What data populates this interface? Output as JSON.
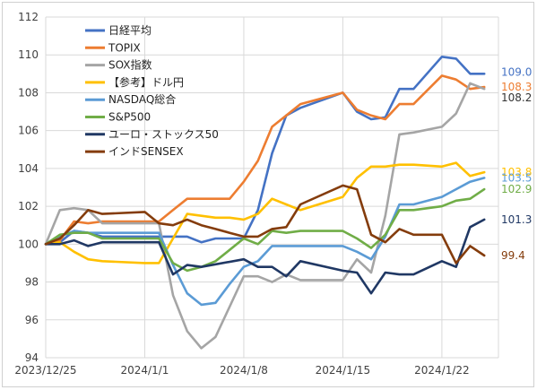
{
  "chart_data": {
    "type": "line",
    "title": "",
    "xlabel": "",
    "ylabel": "",
    "ylim": [
      94,
      112
    ],
    "yticks": [
      94,
      96,
      98,
      100,
      102,
      104,
      106,
      108,
      110,
      112
    ],
    "ytick_labels": [
      "94",
      "96",
      "98",
      "100",
      "102",
      "104",
      "106",
      "108",
      "110",
      "112"
    ],
    "xlim": [
      "2023-12-25",
      "2024-01-26"
    ],
    "xticks": [
      "2023-12-25",
      "2024-01-01",
      "2024-01-08",
      "2024-01-15",
      "2024-01-22"
    ],
    "xtick_labels": [
      "2023/12/25",
      "2024/1/1",
      "2024/1/8",
      "2024/1/15",
      "2024/1/22"
    ],
    "grid": true,
    "legend_position": "top-left",
    "series": [
      {
        "name": "日経平均",
        "color": "#4472c4",
        "end_label": "109.0",
        "points": [
          [
            "2023-12-25",
            100.0
          ],
          [
            "2023-12-26",
            100.1
          ],
          [
            "2023-12-27",
            100.7
          ],
          [
            "2023-12-28",
            100.6
          ],
          [
            "2023-12-29",
            100.4
          ],
          [
            "2024-01-01",
            100.4
          ],
          [
            "2024-01-02",
            100.4
          ],
          [
            "2024-01-03",
            100.4
          ],
          [
            "2024-01-04",
            100.4
          ],
          [
            "2024-01-05",
            100.1
          ],
          [
            "2024-01-06",
            100.3
          ],
          [
            "2024-01-07",
            100.3
          ],
          [
            "2024-01-08",
            100.3
          ],
          [
            "2024-01-09",
            101.8
          ],
          [
            "2024-01-10",
            104.8
          ],
          [
            "2024-01-11",
            106.8
          ],
          [
            "2024-01-12",
            107.2
          ],
          [
            "2024-01-15",
            108.0
          ],
          [
            "2024-01-16",
            107.0
          ],
          [
            "2024-01-17",
            106.6
          ],
          [
            "2024-01-18",
            106.7
          ],
          [
            "2024-01-19",
            108.2
          ],
          [
            "2024-01-20",
            108.2
          ],
          [
            "2024-01-22",
            109.9
          ],
          [
            "2024-01-23",
            109.8
          ],
          [
            "2024-01-24",
            109.0
          ],
          [
            "2024-01-25",
            109.0
          ]
        ]
      },
      {
        "name": "TOPIX",
        "color": "#ed7d31",
        "end_label": "108.3",
        "points": [
          [
            "2023-12-25",
            100.0
          ],
          [
            "2023-12-26",
            100.2
          ],
          [
            "2023-12-27",
            101.2
          ],
          [
            "2023-12-28",
            101.1
          ],
          [
            "2023-12-29",
            101.2
          ],
          [
            "2024-01-01",
            101.2
          ],
          [
            "2024-01-02",
            101.2
          ],
          [
            "2024-01-03",
            101.8
          ],
          [
            "2024-01-04",
            102.4
          ],
          [
            "2024-01-05",
            102.4
          ],
          [
            "2024-01-06",
            102.4
          ],
          [
            "2024-01-07",
            102.4
          ],
          [
            "2024-01-08",
            103.3
          ],
          [
            "2024-01-09",
            104.4
          ],
          [
            "2024-01-10",
            106.2
          ],
          [
            "2024-01-11",
            106.8
          ],
          [
            "2024-01-12",
            107.4
          ],
          [
            "2024-01-15",
            108.0
          ],
          [
            "2024-01-16",
            107.1
          ],
          [
            "2024-01-17",
            106.8
          ],
          [
            "2024-01-18",
            106.6
          ],
          [
            "2024-01-19",
            107.4
          ],
          [
            "2024-01-20",
            107.4
          ],
          [
            "2024-01-22",
            108.9
          ],
          [
            "2024-01-23",
            108.7
          ],
          [
            "2024-01-24",
            108.2
          ],
          [
            "2024-01-25",
            108.3
          ]
        ]
      },
      {
        "name": "SOX指数",
        "color": "#a5a5a5",
        "end_label": "108.2",
        "points": [
          [
            "2023-12-25",
            100.0
          ],
          [
            "2023-12-26",
            101.8
          ],
          [
            "2023-12-27",
            101.9
          ],
          [
            "2023-12-28",
            101.8
          ],
          [
            "2023-12-29",
            101.1
          ],
          [
            "2024-01-01",
            101.1
          ],
          [
            "2024-01-02",
            101.1
          ],
          [
            "2024-01-03",
            97.3
          ],
          [
            "2024-01-04",
            95.4
          ],
          [
            "2024-01-05",
            94.5
          ],
          [
            "2024-01-06",
            95.1
          ],
          [
            "2024-01-07",
            96.7
          ],
          [
            "2024-01-08",
            98.3
          ],
          [
            "2024-01-09",
            98.3
          ],
          [
            "2024-01-10",
            98.0
          ],
          [
            "2024-01-11",
            98.4
          ],
          [
            "2024-01-12",
            98.1
          ],
          [
            "2024-01-15",
            98.1
          ],
          [
            "2024-01-16",
            99.2
          ],
          [
            "2024-01-17",
            98.5
          ],
          [
            "2024-01-18",
            101.5
          ],
          [
            "2024-01-19",
            105.8
          ],
          [
            "2024-01-20",
            105.9
          ],
          [
            "2024-01-22",
            106.2
          ],
          [
            "2024-01-23",
            106.9
          ],
          [
            "2024-01-24",
            108.5
          ],
          [
            "2024-01-25",
            108.2
          ]
        ]
      },
      {
        "name": "【参考】ドル円",
        "color": "#ffc000",
        "end_label": "103.8",
        "points": [
          [
            "2023-12-25",
            100.0
          ],
          [
            "2023-12-26",
            100.1
          ],
          [
            "2023-12-27",
            99.6
          ],
          [
            "2023-12-28",
            99.2
          ],
          [
            "2023-12-29",
            99.1
          ],
          [
            "2024-01-01",
            99.0
          ],
          [
            "2024-01-02",
            99.0
          ],
          [
            "2024-01-03",
            100.3
          ],
          [
            "2024-01-04",
            101.6
          ],
          [
            "2024-01-05",
            101.5
          ],
          [
            "2024-01-06",
            101.4
          ],
          [
            "2024-01-07",
            101.4
          ],
          [
            "2024-01-08",
            101.3
          ],
          [
            "2024-01-09",
            101.6
          ],
          [
            "2024-01-10",
            102.4
          ],
          [
            "2024-01-11",
            102.1
          ],
          [
            "2024-01-12",
            101.8
          ],
          [
            "2024-01-15",
            102.5
          ],
          [
            "2024-01-16",
            103.5
          ],
          [
            "2024-01-17",
            104.1
          ],
          [
            "2024-01-18",
            104.1
          ],
          [
            "2024-01-19",
            104.2
          ],
          [
            "2024-01-20",
            104.2
          ],
          [
            "2024-01-22",
            104.1
          ],
          [
            "2024-01-23",
            104.3
          ],
          [
            "2024-01-24",
            103.6
          ],
          [
            "2024-01-25",
            103.8
          ]
        ]
      },
      {
        "name": "NASDAQ総合",
        "color": "#5b9bd5",
        "end_label": "103.5",
        "points": [
          [
            "2023-12-25",
            100.0
          ],
          [
            "2023-12-26",
            100.4
          ],
          [
            "2023-12-27",
            100.7
          ],
          [
            "2023-12-28",
            100.6
          ],
          [
            "2023-12-29",
            100.6
          ],
          [
            "2024-01-01",
            100.6
          ],
          [
            "2024-01-02",
            100.6
          ],
          [
            "2024-01-03",
            98.9
          ],
          [
            "2024-01-04",
            97.4
          ],
          [
            "2024-01-05",
            96.8
          ],
          [
            "2024-01-06",
            96.9
          ],
          [
            "2024-01-07",
            97.9
          ],
          [
            "2024-01-08",
            98.8
          ],
          [
            "2024-01-09",
            99.1
          ],
          [
            "2024-01-10",
            99.9
          ],
          [
            "2024-01-11",
            99.9
          ],
          [
            "2024-01-12",
            99.9
          ],
          [
            "2024-01-15",
            99.9
          ],
          [
            "2024-01-16",
            99.6
          ],
          [
            "2024-01-17",
            99.2
          ],
          [
            "2024-01-18",
            100.4
          ],
          [
            "2024-01-19",
            102.1
          ],
          [
            "2024-01-20",
            102.1
          ],
          [
            "2024-01-22",
            102.5
          ],
          [
            "2024-01-23",
            102.9
          ],
          [
            "2024-01-24",
            103.3
          ],
          [
            "2024-01-25",
            103.5
          ]
        ]
      },
      {
        "name": "S&P500",
        "color": "#70ad47",
        "end_label": "102.9",
        "points": [
          [
            "2023-12-25",
            100.0
          ],
          [
            "2023-12-26",
            100.5
          ],
          [
            "2023-12-27",
            100.6
          ],
          [
            "2023-12-28",
            100.6
          ],
          [
            "2023-12-29",
            100.3
          ],
          [
            "2024-01-01",
            100.3
          ],
          [
            "2024-01-02",
            100.3
          ],
          [
            "2024-01-03",
            99.0
          ],
          [
            "2024-01-04",
            98.6
          ],
          [
            "2024-01-05",
            98.8
          ],
          [
            "2024-01-06",
            99.1
          ],
          [
            "2024-01-07",
            99.7
          ],
          [
            "2024-01-08",
            100.3
          ],
          [
            "2024-01-09",
            100.0
          ],
          [
            "2024-01-10",
            100.7
          ],
          [
            "2024-01-11",
            100.6
          ],
          [
            "2024-01-12",
            100.7
          ],
          [
            "2024-01-15",
            100.7
          ],
          [
            "2024-01-16",
            100.3
          ],
          [
            "2024-01-17",
            99.8
          ],
          [
            "2024-01-18",
            100.5
          ],
          [
            "2024-01-19",
            101.8
          ],
          [
            "2024-01-20",
            101.8
          ],
          [
            "2024-01-22",
            102.0
          ],
          [
            "2024-01-23",
            102.3
          ],
          [
            "2024-01-24",
            102.4
          ],
          [
            "2024-01-25",
            102.9
          ]
        ]
      },
      {
        "name": "ユーロ・ストックス50",
        "color": "#203864",
        "end_label": "101.3",
        "points": [
          [
            "2023-12-25",
            100.0
          ],
          [
            "2023-12-26",
            100.0
          ],
          [
            "2023-12-27",
            100.2
          ],
          [
            "2023-12-28",
            99.9
          ],
          [
            "2023-12-29",
            100.1
          ],
          [
            "2024-01-01",
            100.1
          ],
          [
            "2024-01-02",
            100.1
          ],
          [
            "2024-01-03",
            98.4
          ],
          [
            "2024-01-04",
            98.9
          ],
          [
            "2024-01-05",
            98.8
          ],
          [
            "2024-01-08",
            99.2
          ],
          [
            "2024-01-09",
            98.8
          ],
          [
            "2024-01-10",
            98.8
          ],
          [
            "2024-01-11",
            98.3
          ],
          [
            "2024-01-12",
            99.1
          ],
          [
            "2024-01-15",
            98.6
          ],
          [
            "2024-01-16",
            98.5
          ],
          [
            "2024-01-17",
            97.4
          ],
          [
            "2024-01-18",
            98.5
          ],
          [
            "2024-01-19",
            98.4
          ],
          [
            "2024-01-20",
            98.4
          ],
          [
            "2024-01-22",
            99.1
          ],
          [
            "2024-01-23",
            98.8
          ],
          [
            "2024-01-24",
            100.9
          ],
          [
            "2024-01-25",
            101.3
          ]
        ]
      },
      {
        "name": "インドSENSEX",
        "color": "#843c0c",
        "end_label": "99.4",
        "points": [
          [
            "2023-12-25",
            100.0
          ],
          [
            "2023-12-26",
            100.3
          ],
          [
            "2023-12-27",
            101.0
          ],
          [
            "2023-12-28",
            101.8
          ],
          [
            "2023-12-29",
            101.6
          ],
          [
            "2024-01-01",
            101.7
          ],
          [
            "2024-01-02",
            101.1
          ],
          [
            "2024-01-03",
            101.0
          ],
          [
            "2024-01-04",
            101.3
          ],
          [
            "2024-01-05",
            101.0
          ],
          [
            "2024-01-06",
            100.8
          ],
          [
            "2024-01-07",
            100.6
          ],
          [
            "2024-01-08",
            100.4
          ],
          [
            "2024-01-09",
            100.4
          ],
          [
            "2024-01-10",
            100.8
          ],
          [
            "2024-01-11",
            100.9
          ],
          [
            "2024-01-12",
            102.1
          ],
          [
            "2024-01-15",
            103.1
          ],
          [
            "2024-01-16",
            102.9
          ],
          [
            "2024-01-17",
            100.5
          ],
          [
            "2024-01-18",
            100.1
          ],
          [
            "2024-01-19",
            100.8
          ],
          [
            "2024-01-20",
            100.5
          ],
          [
            "2024-01-22",
            100.5
          ],
          [
            "2024-01-23",
            99.0
          ],
          [
            "2024-01-24",
            99.9
          ],
          [
            "2024-01-25",
            99.4
          ]
        ]
      }
    ]
  }
}
